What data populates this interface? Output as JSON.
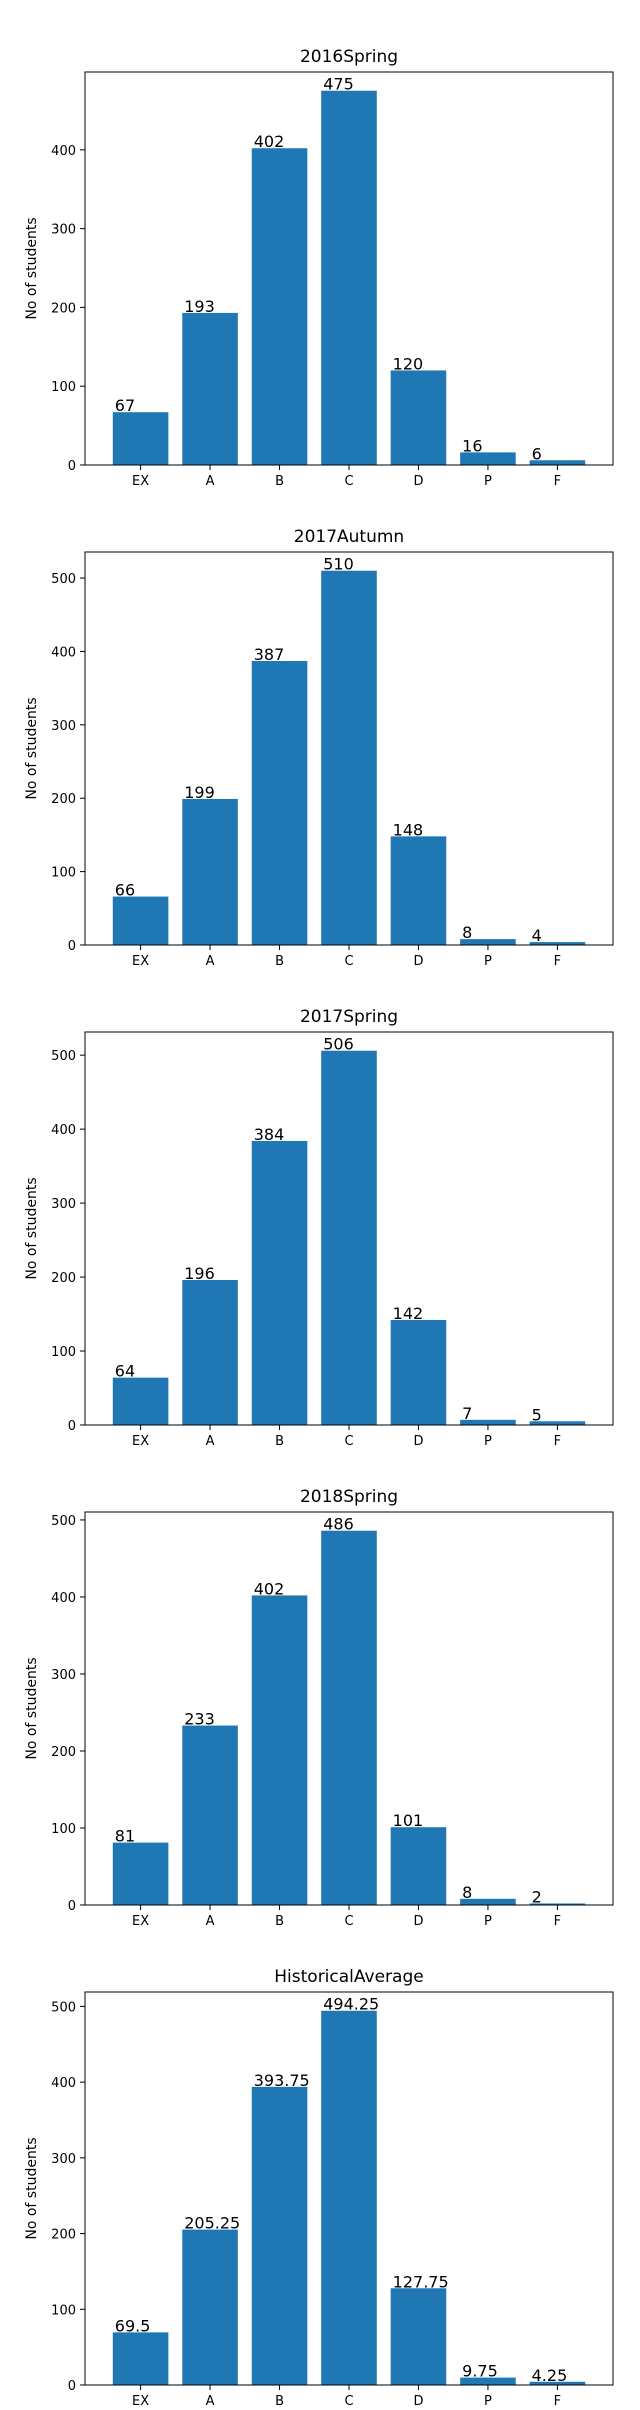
{
  "chart_data": [
    {
      "type": "bar",
      "title": "2016Spring",
      "ylabel": "No of students",
      "xlabel": "",
      "categories": [
        "EX",
        "A",
        "B",
        "C",
        "D",
        "P",
        "F"
      ],
      "values": [
        67,
        193,
        402,
        475,
        120,
        16,
        6
      ],
      "value_labels": [
        "67",
        "193",
        "402",
        "475",
        "120",
        "16",
        "6"
      ],
      "ylim": [
        0,
        498.75
      ],
      "yticks": [
        0,
        100,
        200,
        300,
        400
      ],
      "grid": false,
      "bar_color": "#1f77b4"
    },
    {
      "type": "bar",
      "title": "2017Autumn",
      "ylabel": "No of students",
      "xlabel": "",
      "categories": [
        "EX",
        "A",
        "B",
        "C",
        "D",
        "P",
        "F"
      ],
      "values": [
        66,
        199,
        387,
        510,
        148,
        8,
        4
      ],
      "value_labels": [
        "66",
        "199",
        "387",
        "510",
        "148",
        "8",
        "4"
      ],
      "ylim": [
        0,
        535.5
      ],
      "yticks": [
        0,
        100,
        200,
        300,
        400,
        500
      ],
      "grid": false,
      "bar_color": "#1f77b4"
    },
    {
      "type": "bar",
      "title": "2017Spring",
      "ylabel": "No of students",
      "xlabel": "",
      "categories": [
        "EX",
        "A",
        "B",
        "C",
        "D",
        "P",
        "F"
      ],
      "values": [
        64,
        196,
        384,
        506,
        142,
        7,
        5
      ],
      "value_labels": [
        "64",
        "196",
        "384",
        "506",
        "142",
        "7",
        "5"
      ],
      "ylim": [
        0,
        531.3
      ],
      "yticks": [
        0,
        100,
        200,
        300,
        400,
        500
      ],
      "grid": false,
      "bar_color": "#1f77b4"
    },
    {
      "type": "bar",
      "title": "2018Spring",
      "ylabel": "No of students",
      "xlabel": "",
      "categories": [
        "EX",
        "A",
        "B",
        "C",
        "D",
        "P",
        "F"
      ],
      "values": [
        81,
        233,
        402,
        486,
        101,
        8,
        2
      ],
      "value_labels": [
        "81",
        "233",
        "402",
        "486",
        "101",
        "8",
        "2"
      ],
      "ylim": [
        0,
        510.3
      ],
      "yticks": [
        0,
        100,
        200,
        300,
        400,
        500
      ],
      "grid": false,
      "bar_color": "#1f77b4"
    },
    {
      "type": "bar",
      "title": "HistoricalAverage",
      "ylabel": "No of students",
      "xlabel": "",
      "categories": [
        "EX",
        "A",
        "B",
        "C",
        "D",
        "P",
        "F"
      ],
      "values": [
        69.5,
        205.25,
        393.75,
        494.25,
        127.75,
        9.75,
        4.25
      ],
      "value_labels": [
        "69.5",
        "205.25",
        "393.75",
        "494.25",
        "127.75",
        "9.75",
        "4.25"
      ],
      "ylim": [
        0,
        519
      ],
      "yticks": [
        0,
        100,
        200,
        300,
        400,
        500
      ],
      "grid": false,
      "bar_color": "#1f77b4"
    }
  ]
}
